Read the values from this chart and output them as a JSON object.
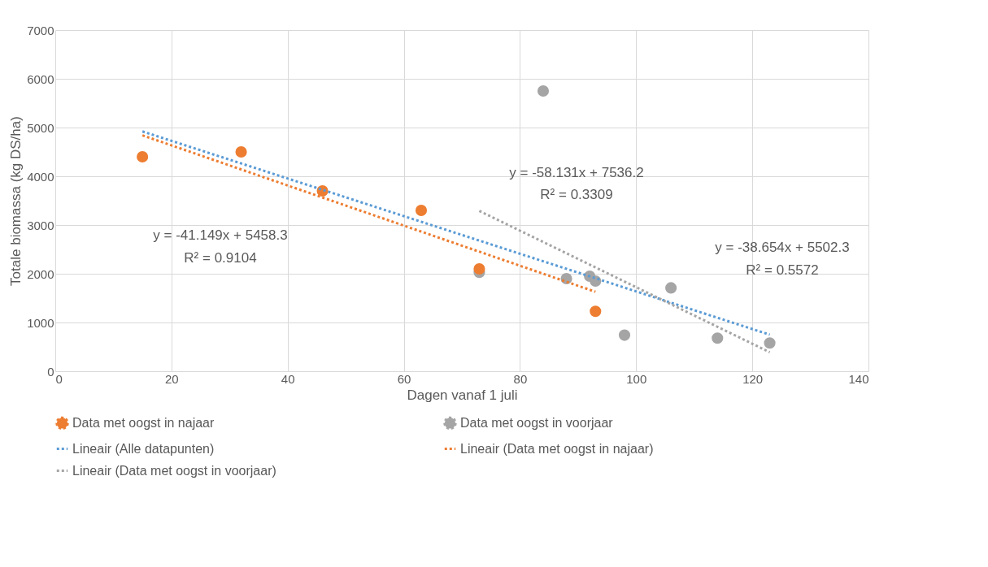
{
  "chart_data": {
    "type": "scatter",
    "xlabel": "Dagen vanaf 1 juli",
    "ylabel": "Totale biomassa (kg DS/ha)",
    "xlim": [
      0,
      140
    ],
    "xticks": [
      0,
      20,
      40,
      60,
      80,
      100,
      120,
      140
    ],
    "ylim": [
      0,
      7000
    ],
    "yticks": [
      0,
      1000,
      2000,
      3000,
      4000,
      5000,
      6000,
      7000
    ],
    "grid": true,
    "legend": "bottom",
    "line_style": "dotted",
    "series": [
      {
        "name": "Data met oogst in najaar",
        "color": "#ed7d31",
        "x": [
          15,
          32,
          46,
          63,
          73,
          93
        ],
        "values": [
          4400,
          4500,
          3700,
          3300,
          2100,
          1230
        ]
      },
      {
        "name": "Data met oogst in voorjaar",
        "color": "#a5a5a5",
        "x": [
          73,
          84,
          88,
          92,
          93,
          98,
          106,
          114,
          123
        ],
        "values": [
          2030,
          5750,
          1900,
          1950,
          1850,
          740,
          1710,
          680,
          580
        ]
      },
      {
        "name": "Lineair (Alle datapunten)",
        "type": "line",
        "color": "#5b9bd5",
        "x": [
          15,
          123
        ],
        "values": [
          4920,
          750
        ]
      },
      {
        "name": "Lineair (Data met oogst in najaar)",
        "type": "line",
        "color": "#ed7d31",
        "x": [
          15,
          93
        ],
        "values": [
          4840,
          1630
        ]
      },
      {
        "name": "Lineair (Data met oogst in voorjaar)",
        "type": "line",
        "color": "#a5a5a5",
        "x": [
          73,
          123
        ],
        "values": [
          3290,
          390
        ]
      }
    ],
    "annotations": [
      "y = -41.149x + 5458.3",
      "R² = 0.9104",
      "y = -58.131x + 7536.2",
      "R² = 0.3309",
      "y = -38.654x + 5502.3",
      "R² = 0.5572"
    ]
  }
}
